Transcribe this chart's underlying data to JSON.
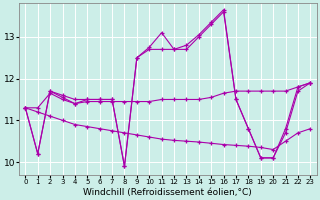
{
  "xlabel": "Windchill (Refroidissement éolien,°C)",
  "ylabel": "",
  "background_color": "#cceee8",
  "line_color": "#aa00aa",
  "xlim": [
    -0.5,
    23.5
  ],
  "ylim": [
    9.7,
    13.8
  ],
  "yticks": [
    10,
    11,
    12,
    13
  ],
  "xticks": [
    0,
    1,
    2,
    3,
    4,
    5,
    6,
    7,
    8,
    9,
    10,
    11,
    12,
    13,
    14,
    15,
    16,
    17,
    18,
    19,
    20,
    21,
    22,
    23
  ],
  "series": [
    [
      11.3,
      10.2,
      11.7,
      11.6,
      11.5,
      11.5,
      11.5,
      11.5,
      9.9,
      12.5,
      12.75,
      13.1,
      12.7,
      12.8,
      13.05,
      13.35,
      13.65,
      11.5,
      10.8,
      10.1,
      10.1,
      10.8,
      11.8,
      11.9
    ],
    [
      11.3,
      10.2,
      11.7,
      11.55,
      11.4,
      11.5,
      11.5,
      11.5,
      9.9,
      12.5,
      12.7,
      12.7,
      12.7,
      12.7,
      13.0,
      13.3,
      13.6,
      11.5,
      10.8,
      10.1,
      10.1,
      10.7,
      11.7,
      11.9
    ],
    [
      11.3,
      11.3,
      11.65,
      11.5,
      11.4,
      11.45,
      11.45,
      11.45,
      11.45,
      11.45,
      11.45,
      11.5,
      11.5,
      11.5,
      11.5,
      11.55,
      11.65,
      11.7,
      11.7,
      11.7,
      11.7,
      11.7,
      11.8,
      11.9
    ],
    [
      11.3,
      11.2,
      11.1,
      11.0,
      10.9,
      10.85,
      10.8,
      10.75,
      10.7,
      10.65,
      10.6,
      10.55,
      10.52,
      10.5,
      10.48,
      10.45,
      10.42,
      10.4,
      10.38,
      10.35,
      10.3,
      10.5,
      10.7,
      10.8
    ]
  ]
}
